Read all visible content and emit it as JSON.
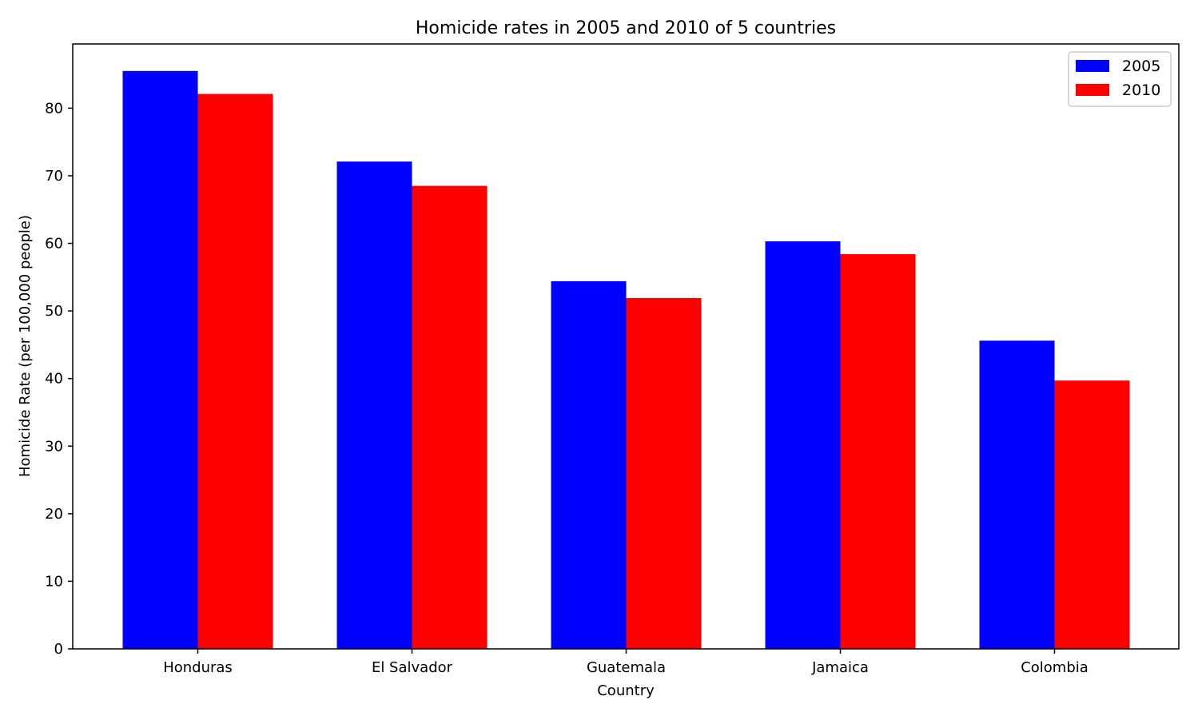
{
  "chart_data": {
    "type": "bar",
    "title": "Homicide rates in 2005 and 2010 of 5 countries",
    "xlabel": "Country",
    "ylabel": "Homicide Rate (per 100,000 people)",
    "categories": [
      "Honduras",
      "El Salvador",
      "Guatemala",
      "Jamaica",
      "Colombia"
    ],
    "series": [
      {
        "name": "2005",
        "color": "#0000ff",
        "values": [
          85.5,
          72.1,
          54.4,
          60.3,
          45.6
        ]
      },
      {
        "name": "2010",
        "color": "#ff0000",
        "values": [
          82.1,
          68.5,
          51.9,
          58.4,
          39.7
        ]
      }
    ],
    "ylim": [
      0,
      89.5
    ],
    "yticks": [
      0,
      10,
      20,
      30,
      40,
      50,
      60,
      70,
      80
    ],
    "grid": false,
    "legend_position": "top-right"
  }
}
